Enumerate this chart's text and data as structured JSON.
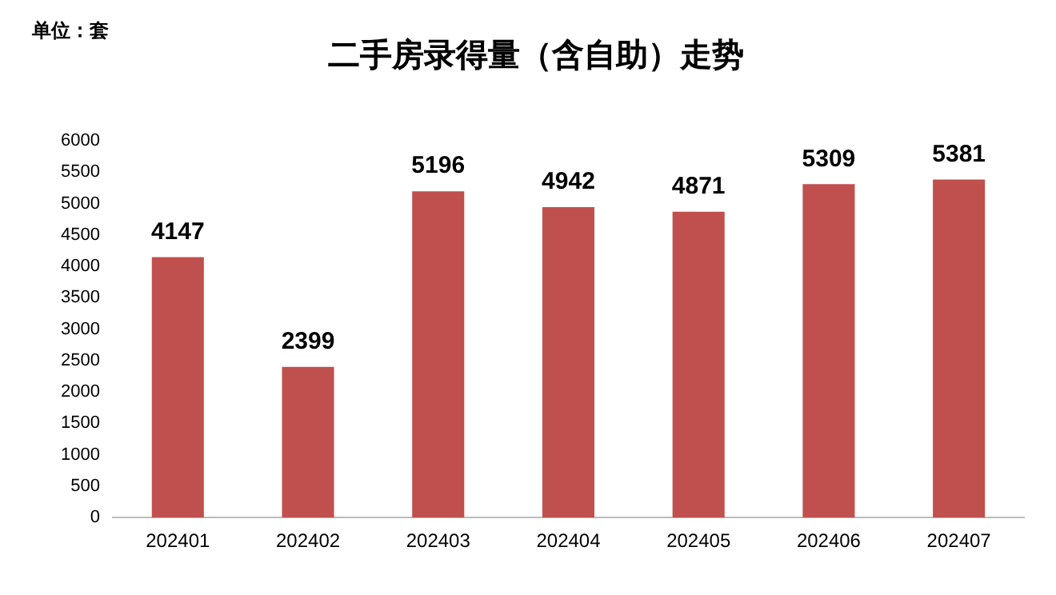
{
  "chart_data": {
    "type": "bar",
    "title": "二手房录得量（含自助）走势",
    "annotations": [
      "单位：套"
    ],
    "categories": [
      "202401",
      "202402",
      "202403",
      "202404",
      "202405",
      "202406",
      "202407"
    ],
    "values": [
      4147,
      2399,
      5196,
      4942,
      4871,
      5309,
      5381
    ],
    "color": "#c0504d",
    "ylim": [
      0,
      6000
    ],
    "yticks": [
      0,
      500,
      1000,
      1500,
      2000,
      2500,
      3000,
      3500,
      4000,
      4500,
      5000,
      5500,
      6000
    ],
    "grid": false,
    "legend": false,
    "data_labels": true
  }
}
